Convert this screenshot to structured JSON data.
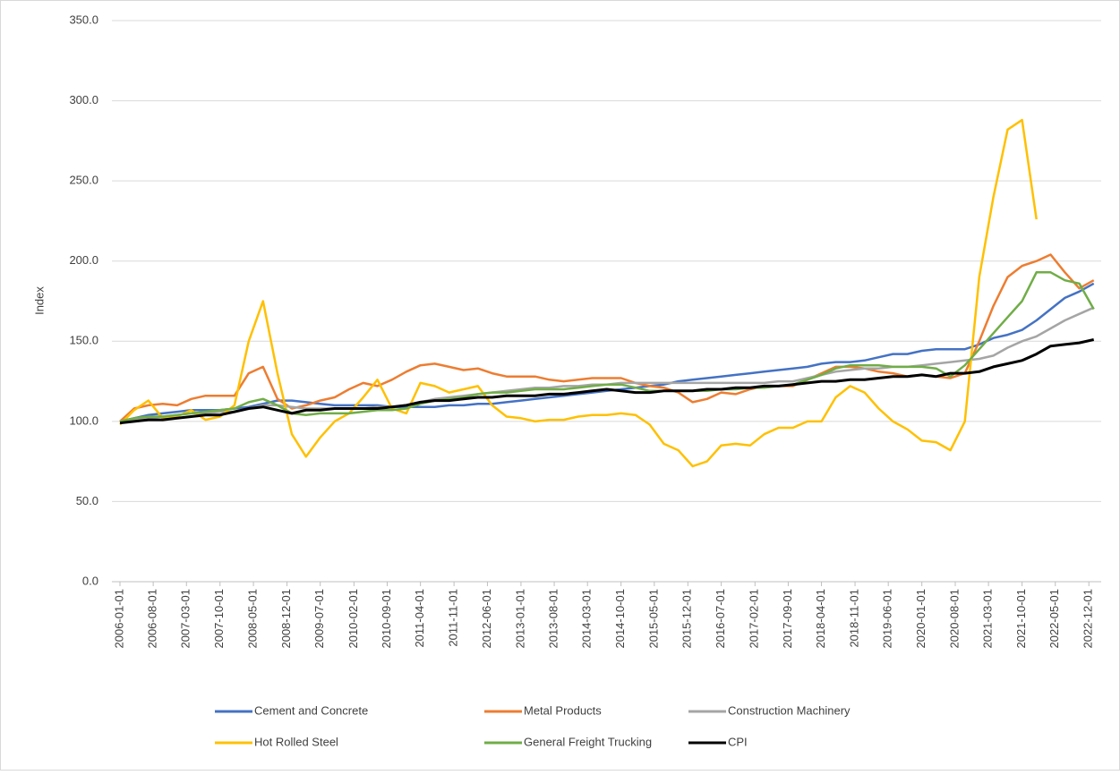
{
  "chart_data": {
    "type": "line",
    "ylabel": "Index",
    "x": [
      "2006-01-01",
      "2006-04-01",
      "2006-07-01",
      "2006-10-01",
      "2007-01-01",
      "2007-04-01",
      "2007-07-01",
      "2007-10-01",
      "2008-01-01",
      "2008-04-01",
      "2008-07-01",
      "2008-10-01",
      "2009-01-01",
      "2009-04-01",
      "2009-07-01",
      "2009-10-01",
      "2010-01-01",
      "2010-04-01",
      "2010-07-01",
      "2010-10-01",
      "2011-01-01",
      "2011-04-01",
      "2011-07-01",
      "2011-10-01",
      "2012-01-01",
      "2012-04-01",
      "2012-07-01",
      "2012-10-01",
      "2013-01-01",
      "2013-04-01",
      "2013-07-01",
      "2013-10-01",
      "2014-01-01",
      "2014-04-01",
      "2014-07-01",
      "2014-10-01",
      "2015-01-01",
      "2015-04-01",
      "2015-07-01",
      "2015-10-01",
      "2016-01-01",
      "2016-04-01",
      "2016-07-01",
      "2016-10-01",
      "2017-01-01",
      "2017-04-01",
      "2017-07-01",
      "2017-10-01",
      "2018-01-01",
      "2018-04-01",
      "2018-07-01",
      "2018-10-01",
      "2019-01-01",
      "2019-04-01",
      "2019-07-01",
      "2019-10-01",
      "2020-01-01",
      "2020-04-01",
      "2020-07-01",
      "2020-10-01",
      "2021-01-01",
      "2021-04-01",
      "2021-07-01",
      "2021-10-01",
      "2022-01-01",
      "2022-04-01",
      "2022-07-01",
      "2022-10-01",
      "2023-01-01"
    ],
    "series": [
      {
        "name": "Cement and Concrete",
        "color": "#4472c4",
        "values": [
          100,
          102,
          104,
          105,
          106,
          107,
          107,
          107,
          108,
          109,
          111,
          113,
          113,
          112,
          111,
          110,
          110,
          110,
          110,
          109,
          109,
          109,
          109,
          110,
          110,
          111,
          111,
          112,
          113,
          114,
          115,
          116,
          117,
          118,
          119,
          120,
          121,
          122,
          123,
          125,
          126,
          127,
          128,
          129,
          130,
          131,
          132,
          133,
          134,
          136,
          137,
          137,
          138,
          140,
          142,
          142,
          144,
          145,
          145,
          145,
          148,
          152,
          154,
          157,
          163,
          170,
          177,
          181,
          186
        ]
      },
      {
        "name": "Metal Products",
        "color": "#ed7d31",
        "values": [
          100,
          108,
          110,
          111,
          110,
          114,
          116,
          116,
          116,
          130,
          134,
          114,
          108,
          110,
          113,
          115,
          120,
          124,
          122,
          126,
          131,
          135,
          136,
          134,
          132,
          133,
          130,
          128,
          128,
          128,
          126,
          125,
          126,
          127,
          127,
          127,
          124,
          122,
          121,
          118,
          112,
          114,
          118,
          117,
          120,
          122,
          122,
          122,
          126,
          130,
          134,
          134,
          133,
          131,
          130,
          128,
          129,
          128,
          127,
          130,
          150,
          172,
          190,
          197,
          200,
          204,
          193,
          183,
          188
        ]
      },
      {
        "name": "Construction Machinery",
        "color": "#a5a5a5",
        "values": [
          100,
          101,
          102,
          103,
          104,
          105,
          105,
          106,
          106,
          108,
          110,
          110,
          109,
          108,
          108,
          108,
          108,
          108,
          109,
          109,
          110,
          112,
          114,
          115,
          116,
          117,
          118,
          119,
          120,
          121,
          121,
          122,
          122,
          123,
          123,
          124,
          124,
          124,
          124,
          124,
          124,
          124,
          124,
          124,
          124,
          124,
          125,
          125,
          127,
          129,
          131,
          132,
          133,
          133,
          134,
          134,
          135,
          136,
          137,
          138,
          139,
          141,
          146,
          150,
          153,
          158,
          163,
          167,
          171
        ]
      },
      {
        "name": "Hot Rolled Steel",
        "color": "#ffc000",
        "values": [
          98,
          107,
          113,
          102,
          103,
          107,
          101,
          103,
          110,
          150,
          175,
          130,
          92,
          78,
          90,
          100,
          105,
          115,
          126,
          108,
          105,
          124,
          122,
          118,
          120,
          122,
          110,
          103,
          102,
          100,
          101,
          101,
          103,
          104,
          104,
          105,
          104,
          98,
          86,
          82,
          72,
          75,
          85,
          86,
          85,
          92,
          96,
          96,
          100,
          100,
          115,
          122,
          118,
          108,
          100,
          95,
          88,
          87,
          82,
          100,
          190,
          240,
          282,
          288,
          226,
          null,
          null,
          null,
          null
        ]
      },
      {
        "name": "General Freight Trucking",
        "color": "#70ad47",
        "values": [
          100,
          102,
          103,
          103,
          104,
          105,
          106,
          107,
          108,
          112,
          114,
          110,
          105,
          104,
          105,
          105,
          105,
          106,
          107,
          107,
          108,
          111,
          113,
          114,
          115,
          117,
          118,
          118,
          119,
          120,
          120,
          120,
          121,
          122,
          123,
          123,
          121,
          119,
          119,
          119,
          119,
          119,
          120,
          120,
          121,
          121,
          122,
          123,
          126,
          129,
          133,
          135,
          135,
          135,
          134,
          134,
          134,
          133,
          128,
          135,
          145,
          155,
          165,
          175,
          193,
          193,
          188,
          186,
          170
        ]
      },
      {
        "name": "CPI",
        "color": "#000000",
        "values": [
          99,
          100,
          101,
          101,
          102,
          103,
          104,
          104,
          106,
          108,
          109,
          107,
          105,
          107,
          107,
          108,
          108,
          108,
          108,
          109,
          110,
          112,
          113,
          113,
          114,
          115,
          115,
          116,
          116,
          116,
          117,
          117,
          118,
          119,
          120,
          119,
          118,
          118,
          119,
          119,
          119,
          120,
          120,
          121,
          121,
          122,
          122,
          123,
          124,
          125,
          125,
          126,
          126,
          127,
          128,
          128,
          129,
          128,
          130,
          130,
          131,
          134,
          136,
          138,
          142,
          147,
          148,
          149,
          151
        ]
      }
    ],
    "xlim": [
      "2006-01-01",
      "2023-03-01"
    ],
    "xticks": [
      "2006-01-01",
      "2006-08-01",
      "2007-03-01",
      "2007-10-01",
      "2008-05-01",
      "2008-12-01",
      "2009-07-01",
      "2010-02-01",
      "2010-09-01",
      "2011-04-01",
      "2011-11-01",
      "2012-06-01",
      "2013-01-01",
      "2013-08-01",
      "2014-03-01",
      "2014-10-01",
      "2015-05-01",
      "2015-12-01",
      "2016-07-01",
      "2017-02-01",
      "2017-09-01",
      "2018-04-01",
      "2018-11-01",
      "2019-06-01",
      "2020-01-01",
      "2020-08-01",
      "2021-03-01",
      "2021-10-01",
      "2022-05-01",
      "2022-12-01"
    ],
    "ylim": [
      0,
      350
    ],
    "yticks": [
      {
        "value": 0,
        "label": "0.0"
      },
      {
        "value": 50,
        "label": "50.0"
      },
      {
        "value": 100,
        "label": "100.0"
      },
      {
        "value": 150,
        "label": "150.0"
      },
      {
        "value": 200,
        "label": "200.0"
      },
      {
        "value": 250,
        "label": "250.0"
      },
      {
        "value": 300,
        "label": "300.0"
      },
      {
        "value": 350,
        "label": "350.0"
      }
    ],
    "grid": true
  }
}
